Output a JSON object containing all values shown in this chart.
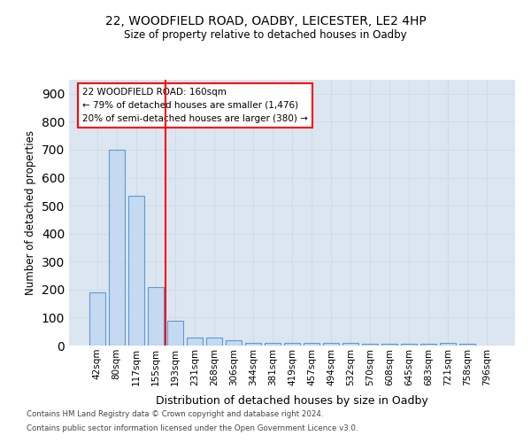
{
  "title1": "22, WOODFIELD ROAD, OADBY, LEICESTER, LE2 4HP",
  "title2": "Size of property relative to detached houses in Oadby",
  "xlabel": "Distribution of detached houses by size in Oadby",
  "ylabel": "Number of detached properties",
  "categories": [
    "42sqm",
    "80sqm",
    "117sqm",
    "155sqm",
    "193sqm",
    "231sqm",
    "268sqm",
    "306sqm",
    "344sqm",
    "381sqm",
    "419sqm",
    "457sqm",
    "494sqm",
    "532sqm",
    "570sqm",
    "608sqm",
    "645sqm",
    "683sqm",
    "721sqm",
    "758sqm",
    "796sqm"
  ],
  "values": [
    190,
    700,
    535,
    210,
    90,
    30,
    30,
    20,
    10,
    10,
    10,
    10,
    10,
    10,
    5,
    5,
    5,
    5,
    10,
    5,
    0
  ],
  "bar_color": "#c5d9f0",
  "bar_edge_color": "#5b9bd5",
  "grid_color": "#d0dce8",
  "background_color": "#dce6f1",
  "red_line_x": 3.5,
  "annotation_text": "22 WOODFIELD ROAD: 160sqm\n← 79% of detached houses are smaller (1,476)\n20% of semi-detached houses are larger (380) →",
  "ylim": [
    0,
    950
  ],
  "yticks": [
    0,
    100,
    200,
    300,
    400,
    500,
    600,
    700,
    800,
    900
  ],
  "footnote1": "Contains HM Land Registry data © Crown copyright and database right 2024.",
  "footnote2": "Contains public sector information licensed under the Open Government Licence v3.0."
}
